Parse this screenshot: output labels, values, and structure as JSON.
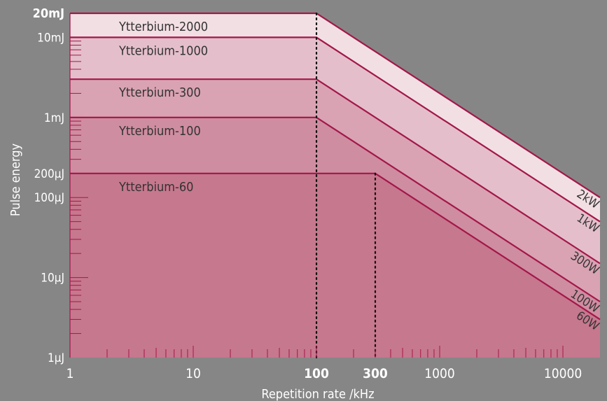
{
  "chart_data": {
    "type": "area",
    "xlabel": "Repetition rate /kHz",
    "ylabel": "Pulse energy",
    "x_scale": "log",
    "y_scale": "log",
    "xlim": [
      1,
      20000
    ],
    "ylim": [
      0.001,
      20
    ],
    "x_unit": "kHz",
    "y_unit": "mJ",
    "x_tick_labels": [
      {
        "value": 1,
        "label": "1",
        "bold": false
      },
      {
        "value": 10,
        "label": "10",
        "bold": false
      },
      {
        "value": 100,
        "label": "100",
        "bold": true
      },
      {
        "value": 300,
        "label": "300",
        "bold": true
      },
      {
        "value": 1000,
        "label": "1000",
        "bold": false
      },
      {
        "value": 10000,
        "label": "10000",
        "bold": false
      }
    ],
    "y_tick_labels": [
      {
        "value": 20,
        "label": "20mJ",
        "bold": true
      },
      {
        "value": 10,
        "label": "10mJ",
        "bold": false
      },
      {
        "value": 1,
        "label": "1mJ",
        "bold": false
      },
      {
        "value": 0.2,
        "label": "200µJ",
        "bold": false
      },
      {
        "value": 0.1,
        "label": "100µJ",
        "bold": false
      },
      {
        "value": 0.01,
        "label": "10µJ",
        "bold": false
      },
      {
        "value": 0.001,
        "label": "1µJ",
        "bold": false
      }
    ],
    "grid": false,
    "reference_lines": [
      {
        "x": 100,
        "style": "dotted"
      },
      {
        "x": 300,
        "style": "dotted"
      }
    ],
    "series": [
      {
        "name": "Ytterbium-2000",
        "power_label": "2kW",
        "max_energy_mJ": 20,
        "corner_rate_kHz": 100,
        "color": "#f2dfe4"
      },
      {
        "name": "Ytterbium-1000",
        "power_label": "1kW",
        "max_energy_mJ": 10,
        "corner_rate_kHz": 100,
        "color": "#e4bfcb"
      },
      {
        "name": "Ytterbium-300",
        "power_label": "300W",
        "max_energy_mJ": 3,
        "corner_rate_kHz": 100,
        "color": "#d9a3b3"
      },
      {
        "name": "Ytterbium-100",
        "power_label": "100W",
        "max_energy_mJ": 1,
        "corner_rate_kHz": 100,
        "color": "#cf8da1"
      },
      {
        "name": "Ytterbium-60",
        "power_label": "60W",
        "max_energy_mJ": 0.2,
        "corner_rate_kHz": 300,
        "color": "#c6788e"
      }
    ],
    "colors": {
      "background": "#868686",
      "outline": "#a3174a",
      "text": "#ffffff",
      "dark_text": "#333333"
    }
  }
}
